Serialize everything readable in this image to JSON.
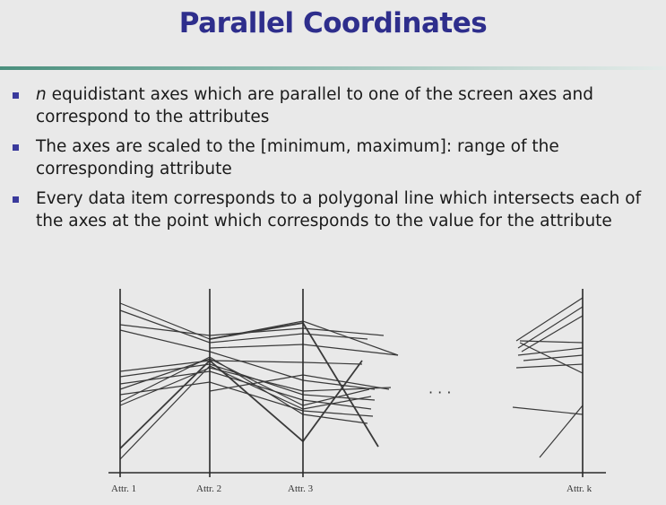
{
  "slide": {
    "title": "Parallel Coordinates",
    "bullets": [
      {
        "italic_lead": "n",
        "text": " equidistant axes which are parallel to one of the screen axes and correspond to the attributes"
      },
      {
        "italic_lead": "",
        "text": "The axes are scaled to the [minimum, maximum]: range of the corresponding attribute"
      },
      {
        "italic_lead": "",
        "text": "Every data item corresponds to a polygonal line which intersects each of the axes at the point which corresponds to the value for the attribute"
      }
    ],
    "bullet_color": "#3a3a9c",
    "title_color": "#2e2e8c"
  },
  "figure": {
    "axis_labels": [
      "Attr. 1",
      "Attr. 2",
      "Attr. 3",
      "Attr. k"
    ],
    "ellipsis": "· · ·",
    "line_color": "#3a3a3a"
  }
}
